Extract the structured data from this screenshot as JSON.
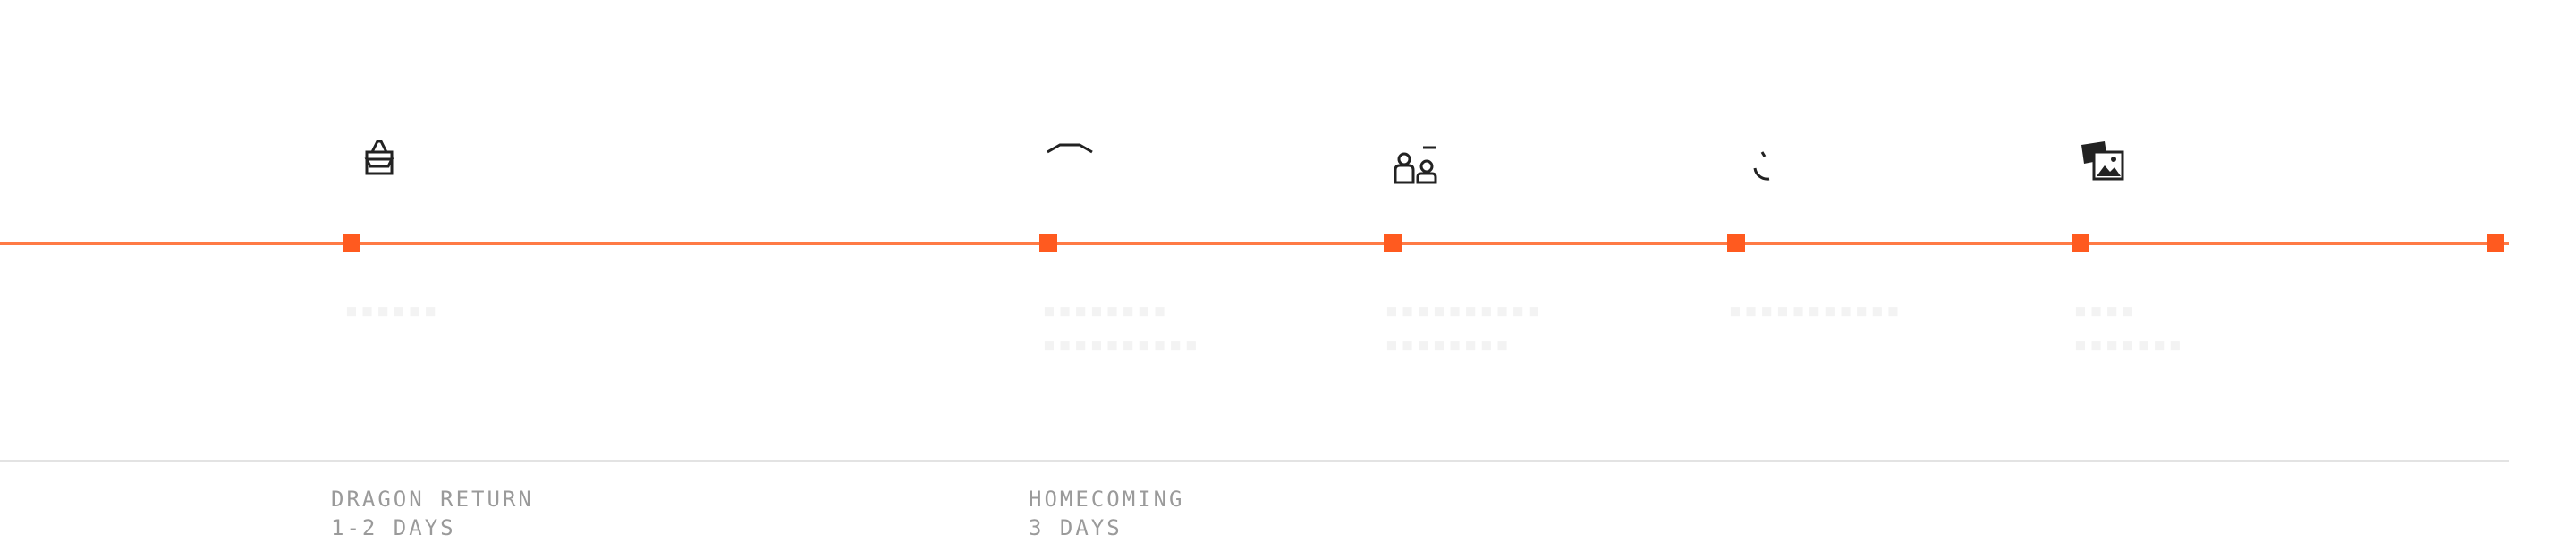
{
  "colors": {
    "accent": "#ff5a1f",
    "line": "#ff7a45",
    "divider": "#e3e3e3",
    "phase_text": "#9a9a9a",
    "icon": "#222222"
  },
  "icons": [
    "bag-icon",
    "arch-icon",
    "people-icon",
    "clock-icon",
    "photos-icon"
  ],
  "phases": [
    {
      "title": "DRAGON RETURN",
      "duration": "1-2 DAYS"
    },
    {
      "title": "HOMECOMING",
      "duration": "3 DAYS"
    }
  ]
}
